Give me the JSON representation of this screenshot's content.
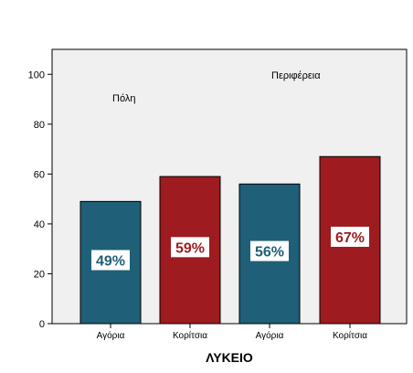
{
  "chart_data": {
    "type": "bar",
    "categories": [
      "Αγόρια",
      "Κορίτσια",
      "Αγόρια",
      "Κορίτσια"
    ],
    "values": [
      49,
      59,
      56,
      67
    ],
    "data_labels": [
      "49%",
      "59%",
      "56%",
      "67%"
    ],
    "bar_colors": [
      "#1f5f77",
      "#9e1c1f",
      "#1f5f77",
      "#9e1c1f"
    ],
    "label_colors": [
      "#1f5f77",
      "#9e1c1f",
      "#1f5f77",
      "#9e1c1f"
    ],
    "groups": [
      "Πόλη",
      "Περιφέρεια"
    ],
    "xlabel": "ΛΥΚΕΙΟ",
    "ylabel": "",
    "ylim": [
      0,
      110
    ],
    "yticks": [
      0,
      20,
      40,
      60,
      80,
      100
    ],
    "plot_background": "#f0f0f0",
    "grid": false,
    "legend": "none"
  }
}
